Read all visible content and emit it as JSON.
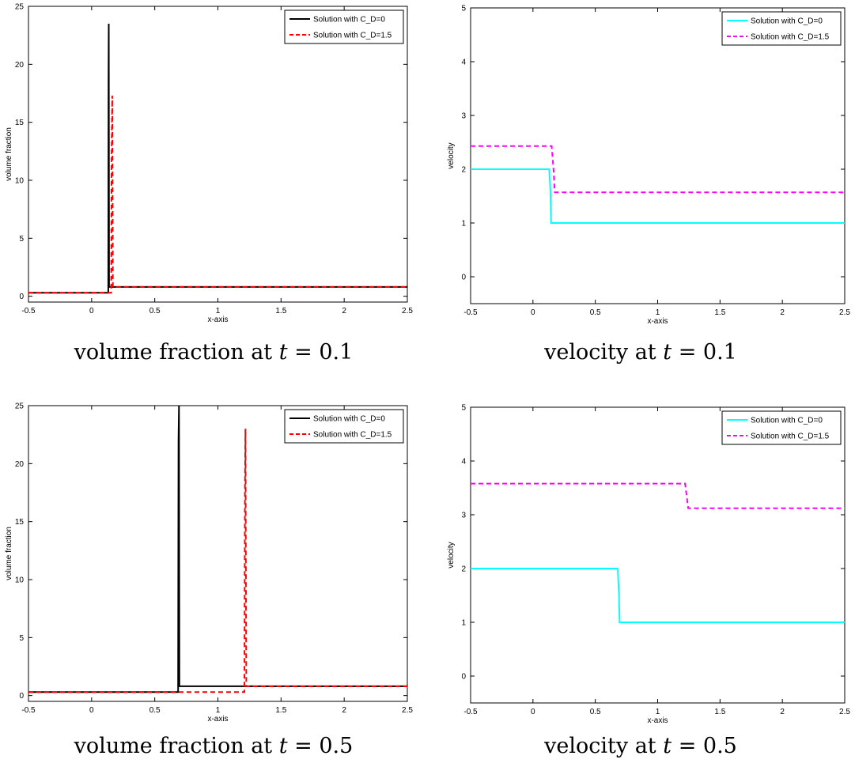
{
  "chart_data": [
    {
      "type": "line",
      "caption": {
        "prefix": "volume fraction at ",
        "var": "t",
        "eq": " = 0.1"
      },
      "xlabel": "x-axis",
      "ylabel": "volume fraction",
      "xlim": [
        -0.5,
        2.5
      ],
      "ylim": [
        -0.5,
        25
      ],
      "xticks": [
        -0.5,
        0,
        0.5,
        1,
        1.5,
        2,
        2.5
      ],
      "yticks": [
        0,
        5,
        10,
        15,
        20,
        25
      ],
      "legend_position": "top-right",
      "grid": false,
      "series": [
        {
          "name": "Solution with C_D=0",
          "color": "#000000",
          "dash": "solid",
          "x": [
            -0.5,
            0.132,
            0.134,
            0.136,
            0.138,
            2.5
          ],
          "y": [
            0.3,
            0.3,
            18.5,
            23.5,
            0.8,
            0.8
          ]
        },
        {
          "name": "Solution with C_D=1.5",
          "color": "#ff0000",
          "dash": "dashed",
          "x": [
            -0.5,
            0.155,
            0.158,
            0.163,
            0.168,
            2.5
          ],
          "y": [
            0.3,
            0.3,
            12.0,
            17.3,
            0.8,
            0.8
          ]
        }
      ]
    },
    {
      "type": "line",
      "caption": {
        "prefix": "velocity at ",
        "var": "t",
        "eq": " = 0.1"
      },
      "xlabel": "x-axis",
      "ylabel": "velocity",
      "xlim": [
        -0.5,
        2.5
      ],
      "ylim": [
        -0.5,
        5
      ],
      "xticks": [
        -0.5,
        0,
        0.5,
        1,
        1.5,
        2,
        2.5
      ],
      "yticks": [
        0,
        1,
        2,
        3,
        4,
        5
      ],
      "legend_position": "top-right",
      "grid": false,
      "series": [
        {
          "name": "Solution with C_D=0",
          "color": "#00ffff",
          "dash": "solid",
          "x": [
            -0.5,
            0.13,
            0.14,
            0.145,
            2.5
          ],
          "y": [
            2.0,
            2.0,
            1.6,
            1.0,
            1.0
          ]
        },
        {
          "name": "Solution with C_D=1.5",
          "color": "#ff00ff",
          "dash": "dashed",
          "x": [
            -0.5,
            0.15,
            0.165,
            0.175,
            2.5
          ],
          "y": [
            2.43,
            2.43,
            2.0,
            1.57,
            1.57
          ]
        }
      ]
    },
    {
      "type": "line",
      "caption": {
        "prefix": "volume fraction at ",
        "var": "t",
        "eq": " = 0.5"
      },
      "xlabel": "x-axis",
      "ylabel": "volume fraction",
      "xlim": [
        -0.5,
        2.5
      ],
      "ylim": [
        -0.5,
        25
      ],
      "xticks": [
        -0.5,
        0,
        0.5,
        1,
        1.5,
        2,
        2.5
      ],
      "yticks": [
        0,
        5,
        10,
        15,
        20,
        25
      ],
      "legend_position": "top-right",
      "grid": false,
      "series": [
        {
          "name": "Solution with C_D=0",
          "color": "#000000",
          "dash": "solid",
          "x": [
            -0.5,
            0.685,
            0.688,
            0.692,
            0.695,
            2.5
          ],
          "y": [
            0.3,
            0.3,
            22.0,
            25.0,
            0.8,
            0.8
          ]
        },
        {
          "name": "Solution with C_D=1.5",
          "color": "#ff0000",
          "dash": "dashed",
          "x": [
            -0.5,
            1.21,
            1.214,
            1.218,
            1.225,
            2.5
          ],
          "y": [
            0.3,
            0.3,
            18.0,
            23.0,
            0.8,
            0.8
          ]
        }
      ]
    },
    {
      "type": "line",
      "caption": {
        "prefix": "velocity at ",
        "var": "t",
        "eq": " = 0.5"
      },
      "xlabel": "x-axis",
      "ylabel": "velocity",
      "xlim": [
        -0.5,
        2.5
      ],
      "ylim": [
        -0.5,
        5
      ],
      "xticks": [
        -0.5,
        0,
        0.5,
        1,
        1.5,
        2,
        2.5
      ],
      "yticks": [
        0,
        1,
        2,
        3,
        4,
        5
      ],
      "legend_position": "top-right",
      "grid": false,
      "series": [
        {
          "name": "Solution with C_D=0",
          "color": "#00ffff",
          "dash": "solid",
          "x": [
            -0.5,
            0.68,
            0.69,
            0.695,
            2.5
          ],
          "y": [
            2.0,
            2.0,
            1.5,
            1.0,
            1.0
          ]
        },
        {
          "name": "Solution with C_D=1.5",
          "color": "#ff00ff",
          "dash": "dashed",
          "x": [
            -0.5,
            1.22,
            1.235,
            1.245,
            2.5
          ],
          "y": [
            3.58,
            3.58,
            3.3,
            3.12,
            3.12
          ]
        }
      ]
    }
  ]
}
